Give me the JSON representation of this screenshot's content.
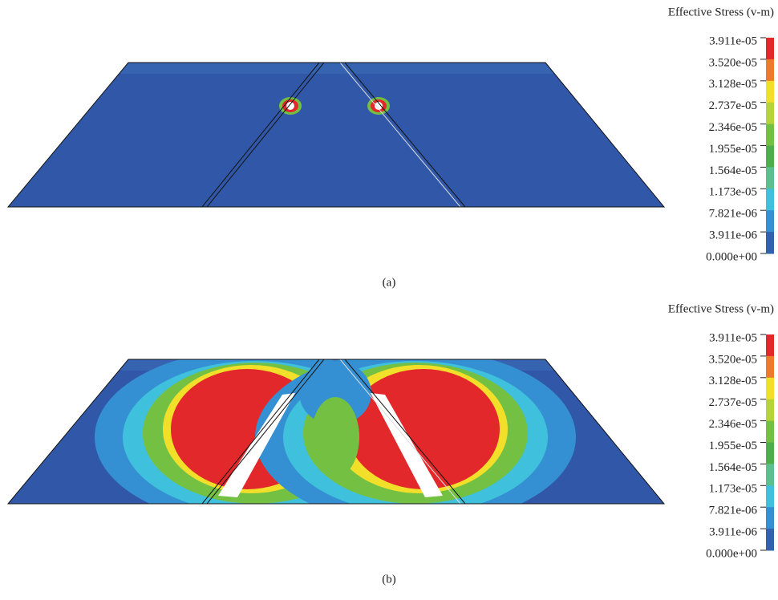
{
  "panels": [
    {
      "caption": "(a)",
      "legend": {
        "title": "Effective Stress (v-m)",
        "labels": [
          "3.911e-05",
          "3.520e-05",
          "3.128e-05",
          "2.737e-05",
          "2.346e-05",
          "1.955e-05",
          "1.564e-05",
          "1.173e-05",
          "7.821e-06",
          "3.911e-06",
          "0.000e+00"
        ]
      }
    },
    {
      "caption": "(b)",
      "legend": {
        "title": "Effective Stress (v-m)",
        "labels": [
          "3.911e-05",
          "3.520e-05",
          "3.128e-05",
          "2.737e-05",
          "2.346e-05",
          "1.955e-05",
          "1.564e-05",
          "1.173e-05",
          "7.821e-06",
          "3.911e-06",
          "0.000e+00"
        ]
      }
    }
  ],
  "colors": [
    "#e3282b",
    "#ee7a2c",
    "#f1df2a",
    "#b6d33a",
    "#74c043",
    "#4fae4c",
    "#5cc08e",
    "#3fc0dc",
    "#3490d2",
    "#3261ae"
  ]
}
